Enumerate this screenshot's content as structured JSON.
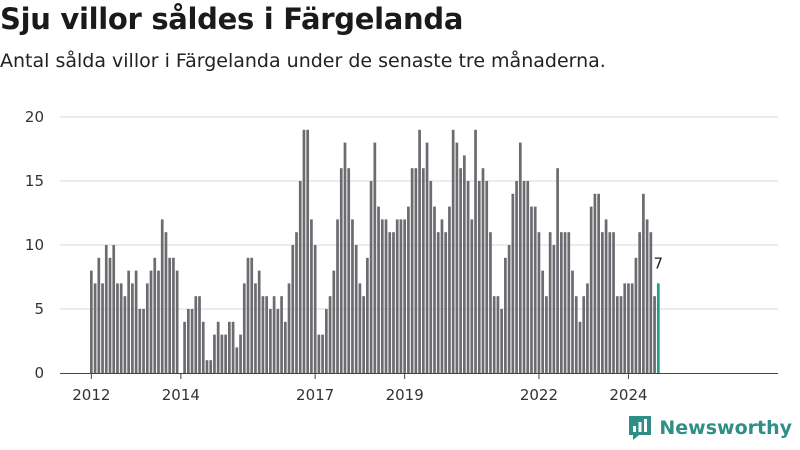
{
  "header": {
    "title": "Sju villor såldes i Färgelanda",
    "subtitle": "Antal sålda villor i Färgelanda under de senaste tre månaderna."
  },
  "brand": {
    "name": "Newsworthy",
    "icon": "newsworthy-logo-icon",
    "color": "#2f8f86"
  },
  "colors": {
    "bar": "#6b6b70",
    "highlight": "#1b9e90",
    "grid": "#d9d9d9",
    "axis": "#444444"
  },
  "chart_data": {
    "type": "bar",
    "title": "Sju villor såldes i Färgelanda",
    "subtitle": "Antal sålda villor i Färgelanda under de senaste tre månaderna.",
    "xlabel": "",
    "ylabel": "",
    "ylim": [
      0,
      20
    ],
    "yticks": [
      0,
      5,
      10,
      15,
      20
    ],
    "xtick_labels": [
      "2012",
      "2014",
      "2017",
      "2019",
      "2022",
      "2024"
    ],
    "xtick_index": [
      0,
      24,
      60,
      84,
      120,
      144
    ],
    "grid": true,
    "highlight_last": true,
    "last_value_label": "7",
    "values": [
      8,
      7,
      9,
      7,
      10,
      9,
      10,
      7,
      7,
      6,
      8,
      7,
      8,
      5,
      5,
      7,
      8,
      9,
      8,
      12,
      11,
      9,
      9,
      8,
      0,
      4,
      5,
      5,
      6,
      6,
      4,
      1,
      1,
      3,
      4,
      3,
      3,
      4,
      4,
      2,
      3,
      7,
      9,
      9,
      7,
      8,
      6,
      6,
      5,
      6,
      5,
      6,
      4,
      7,
      10,
      11,
      15,
      19,
      19,
      12,
      10,
      3,
      3,
      5,
      6,
      8,
      12,
      16,
      18,
      16,
      12,
      10,
      7,
      6,
      9,
      15,
      18,
      13,
      12,
      12,
      11,
      11,
      12,
      12,
      12,
      13,
      16,
      16,
      19,
      16,
      18,
      15,
      13,
      11,
      12,
      11,
      13,
      19,
      18,
      16,
      17,
      15,
      12,
      19,
      15,
      16,
      15,
      11,
      6,
      6,
      5,
      9,
      10,
      14,
      15,
      18,
      15,
      15,
      13,
      13,
      11,
      8,
      6,
      11,
      10,
      16,
      11,
      11,
      11,
      8,
      6,
      4,
      6,
      7,
      13,
      14,
      14,
      11,
      12,
      11,
      11,
      6,
      6,
      7,
      7,
      7,
      9,
      11,
      14,
      12,
      11,
      6,
      7
    ]
  }
}
